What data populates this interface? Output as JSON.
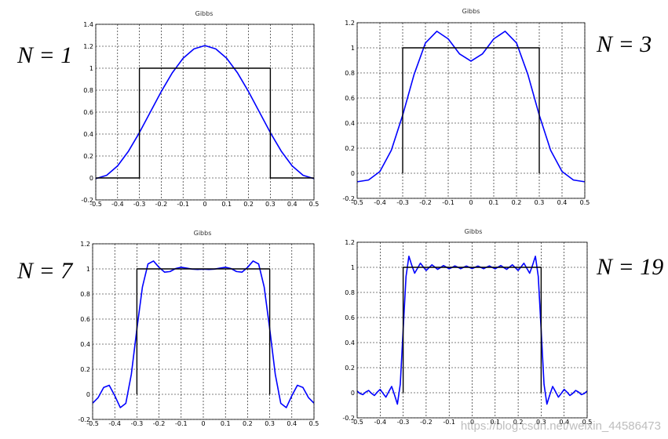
{
  "chart_data": [
    {
      "type": "line",
      "title": "Gibbs",
      "annotation": "N = 1",
      "xlim": [
        -0.5,
        0.5
      ],
      "xticks": [
        -0.5,
        -0.4,
        -0.3,
        -0.2,
        -0.1,
        0,
        0.1,
        0.2,
        0.3,
        0.4,
        0.5
      ],
      "ylim": [
        -0.2,
        1.4
      ],
      "yticks": [
        -0.2,
        0,
        0.2,
        0.4,
        0.6,
        0.8,
        1,
        1.2,
        1.4
      ],
      "grid": true,
      "series": [
        {
          "color": "#0000ff",
          "x": [
            -0.5,
            -0.45,
            -0.4,
            -0.35,
            -0.3,
            -0.25,
            -0.2,
            -0.15,
            -0.1,
            -0.05,
            0,
            0.05,
            0.1,
            0.15,
            0.2,
            0.25,
            0.3,
            0.35,
            0.4,
            0.45,
            0.5
          ],
          "values": [
            -0.006,
            0.024,
            0.11,
            0.244,
            0.413,
            0.6,
            0.787,
            0.956,
            1.09,
            1.176,
            1.206,
            1.176,
            1.09,
            0.956,
            0.787,
            0.6,
            0.413,
            0.244,
            0.11,
            0.024,
            -0.006
          ]
        },
        {
          "color": "#000000",
          "x": [
            -0.5,
            -0.3,
            -0.3,
            0.3,
            0.3,
            0.5
          ],
          "values": [
            0,
            0,
            1,
            1,
            0,
            0
          ]
        }
      ]
    },
    {
      "type": "line",
      "title": "Gibbs",
      "annotation": "N = 3",
      "xlim": [
        -0.5,
        0.5
      ],
      "xticks": [
        -0.5,
        -0.4,
        -0.3,
        -0.2,
        -0.1,
        0,
        0.1,
        0.2,
        0.3,
        0.4,
        0.5
      ],
      "ylim": [
        -0.2,
        1.2
      ],
      "yticks": [
        -0.2,
        0,
        0.2,
        0.4,
        0.6,
        0.8,
        1,
        1.2
      ],
      "grid": true,
      "series": [
        {
          "color": "#0000ff",
          "x": [
            -0.5,
            -0.45,
            -0.4,
            -0.35,
            -0.3,
            -0.25,
            -0.2,
            -0.15,
            -0.1,
            -0.05,
            0,
            0.05,
            0.1,
            0.15,
            0.2,
            0.25,
            0.3,
            0.35,
            0.4,
            0.45,
            0.5
          ],
          "values": [
            -0.068,
            -0.054,
            0.014,
            0.183,
            0.463,
            0.787,
            1.039,
            1.132,
            1.071,
            0.951,
            0.894,
            0.951,
            1.071,
            1.132,
            1.039,
            0.787,
            0.463,
            0.183,
            0.014,
            -0.054,
            -0.068
          ]
        },
        {
          "color": "#000000",
          "x": [
            -0.3,
            -0.3,
            0.3,
            0.3
          ],
          "values": [
            0,
            1,
            1,
            0
          ]
        }
      ]
    },
    {
      "type": "line",
      "title": "Gibbs",
      "annotation": "N = 7",
      "xlim": [
        -0.5,
        0.5
      ],
      "xticks": [
        -0.5,
        -0.4,
        -0.3,
        -0.2,
        -0.1,
        0,
        0.1,
        0.2,
        0.3,
        0.4,
        0.5
      ],
      "ylim": [
        -0.2,
        1.2
      ],
      "yticks": [
        -0.2,
        0,
        0.2,
        0.4,
        0.6,
        0.8,
        1,
        1.2
      ],
      "grid": true,
      "series": [
        {
          "color": "#0000ff",
          "x": [
            -0.5,
            -0.475,
            -0.45,
            -0.425,
            -0.4,
            -0.375,
            -0.35,
            -0.325,
            -0.3,
            -0.275,
            -0.25,
            -0.225,
            -0.2,
            -0.175,
            -0.15,
            -0.125,
            -0.1,
            -0.075,
            -0.05,
            -0.025,
            0,
            0.025,
            0.05,
            0.075,
            0.1,
            0.125,
            0.15,
            0.175,
            0.2,
            0.225,
            0.25,
            0.275,
            0.3,
            0.325,
            0.35,
            0.375,
            0.4,
            0.425,
            0.45,
            0.475,
            0.5
          ],
          "values": [
            -0.071,
            -0.026,
            0.055,
            0.072,
            -0.011,
            -0.106,
            -0.072,
            0.161,
            0.522,
            0.856,
            1.039,
            1.063,
            1.012,
            0.974,
            0.979,
            1.003,
            1.013,
            1.006,
            0.998,
            0.996,
            0.998,
            0.996,
            0.998,
            1.006,
            1.013,
            1.003,
            0.979,
            0.974,
            1.012,
            1.063,
            1.039,
            0.856,
            0.522,
            0.161,
            -0.072,
            -0.106,
            -0.011,
            0.072,
            0.055,
            -0.026,
            -0.071
          ]
        },
        {
          "color": "#000000",
          "x": [
            -0.3,
            -0.3,
            0.3,
            0.3
          ],
          "values": [
            0,
            1,
            1,
            0
          ]
        }
      ]
    },
    {
      "type": "line",
      "title": "Gibbs",
      "annotation": "N = 19",
      "xlim": [
        -0.5,
        0.5
      ],
      "xticks": [
        -0.5,
        -0.4,
        -0.3,
        -0.2,
        -0.1,
        0,
        0.1,
        0.2,
        0.3,
        0.4,
        0.5
      ],
      "ylim": [
        -0.2,
        1.2
      ],
      "yticks": [
        -0.2,
        0,
        0.2,
        0.4,
        0.6,
        0.8,
        1,
        1.2
      ],
      "grid": true,
      "series": [
        {
          "color": "#0000ff",
          "x": [
            -0.5,
            -0.4875,
            -0.475,
            -0.4625,
            -0.45,
            -0.4375,
            -0.425,
            -0.4125,
            -0.4,
            -0.3875,
            -0.375,
            -0.3625,
            -0.35,
            -0.3375,
            -0.325,
            -0.3125,
            -0.3,
            -0.2875,
            -0.275,
            -0.2625,
            -0.25,
            -0.2375,
            -0.225,
            -0.2125,
            -0.2,
            -0.1875,
            -0.175,
            -0.1625,
            -0.15,
            -0.1375,
            -0.125,
            -0.1125,
            -0.1,
            -0.0875,
            -0.075,
            -0.0625,
            -0.05,
            -0.0375,
            -0.025,
            -0.0125,
            0,
            0.0125,
            0.025,
            0.0375,
            0.05,
            0.0625,
            0.075,
            0.0875,
            0.1,
            0.1125,
            0.125,
            0.1375,
            0.15,
            0.1625,
            0.175,
            0.1875,
            0.2,
            0.2125,
            0.225,
            0.2375,
            0.25,
            0.2625,
            0.275,
            0.2875,
            0.3,
            0.3125,
            0.325,
            0.3375,
            0.35,
            0.3625,
            0.375,
            0.3875,
            0.4,
            0.4125,
            0.425,
            0.4375,
            0.45,
            0.4625,
            0.475,
            0.4875,
            0.5
          ],
          "values": [
            0.013,
            -0.006,
            -0.015,
            0.006,
            0.018,
            -0.005,
            -0.022,
            0.005,
            0.027,
            -0.005,
            -0.035,
            0.009,
            0.05,
            -0.017,
            -0.091,
            0.068,
            0.501,
            0.927,
            1.088,
            1.016,
            0.953,
            0.993,
            1.033,
            1.003,
            0.975,
            0.997,
            1.02,
            1.002,
            0.984,
            0.998,
            1.014,
            1.002,
            0.988,
            0.999,
            1.011,
            1.001,
            0.989,
            1.0,
            1.01,
            1.0,
            0.99,
            1.0,
            1.01,
            1.0,
            0.989,
            1.001,
            1.011,
            0.999,
            0.988,
            1.002,
            1.014,
            0.998,
            0.984,
            1.002,
            1.02,
            0.997,
            0.975,
            1.003,
            1.033,
            0.993,
            0.953,
            1.016,
            1.088,
            0.927,
            0.501,
            0.068,
            -0.091,
            -0.017,
            0.05,
            0.009,
            -0.035,
            -0.005,
            0.027,
            0.005,
            -0.022,
            -0.005,
            0.018,
            0.006,
            -0.015,
            -0.006,
            0.013
          ]
        },
        {
          "color": "#000000",
          "x": [
            -0.3,
            -0.3,
            0.3,
            0.3
          ],
          "values": [
            0,
            1,
            1,
            0
          ]
        }
      ]
    }
  ],
  "watermark": "https://blog.csdn.net/weixin_44586473"
}
